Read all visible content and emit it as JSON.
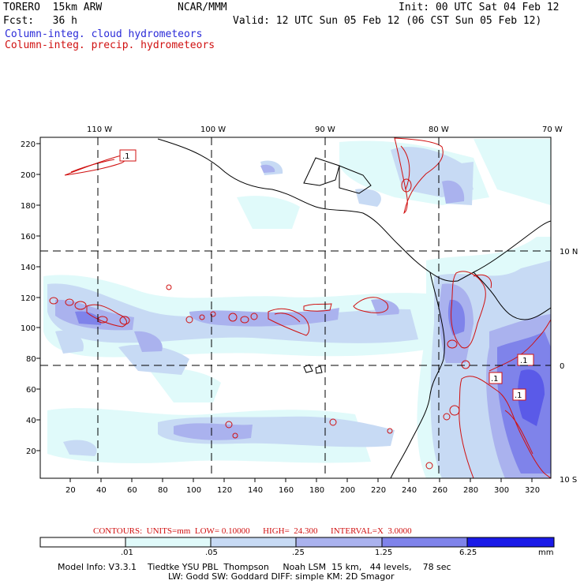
{
  "header": {
    "model_name": "TORERO  15km ARW",
    "org": "NCAR/MMM",
    "init": "Init: 00 UTC Sat 04 Feb 12",
    "fcst": "Fcst:   36 h",
    "valid": "Valid: 12 UTC Sun 05 Feb 12 (06 CST Sun 05 Feb 12)",
    "field_cloud": "Column-integ. cloud hydrometeors",
    "field_precip": "Column-integ. precip. hydrometeors"
  },
  "colors": {
    "cloud_blue": "#2a2ad8",
    "precip_red": "#d01010",
    "shade_1": "#e0fafa",
    "shade_2": "#c7daf4",
    "shade_3": "#aab2ee",
    "shade_4": "#7f83ea",
    "shade_5": "#5a5ae8",
    "shade_6": "#1010e8"
  },
  "map": {
    "lon_labels": [
      "110 W",
      "100 W",
      "90 W",
      "80 W",
      "70 W"
    ],
    "lat_labels": [
      "10 N",
      "0",
      "10 S"
    ],
    "y_grid_ticks": [
      "220",
      "200",
      "180",
      "160",
      "140",
      "120",
      "100",
      "80",
      "60",
      "40",
      "20"
    ],
    "x_grid_ticks": [
      "20",
      "40",
      "60",
      "80",
      "100",
      "120",
      "140",
      "160",
      "180",
      "200",
      "220",
      "240",
      "260",
      "280",
      "300",
      "320"
    ],
    "contour_labels": [
      ".1",
      ".1",
      ".1",
      ".1"
    ]
  },
  "contours_info": "CONTOURS:  UNITS=mm  LOW= 0.10000      HIGH=  24.300      INTERVAL=X  3.0000",
  "colorbar": {
    "labels": [
      ".01",
      ".05",
      ".25",
      "1.25",
      "6.25"
    ],
    "unit": "mm"
  },
  "model_info": {
    "line1": "Model Info: V3.3.1    Tiedtke YSU PBL  Thompson     Noah LSM  15 km,   44 levels,    78 sec",
    "line2": "LW: Godd SW: Goddard DIFF: simple KM: 2D Smagor"
  }
}
